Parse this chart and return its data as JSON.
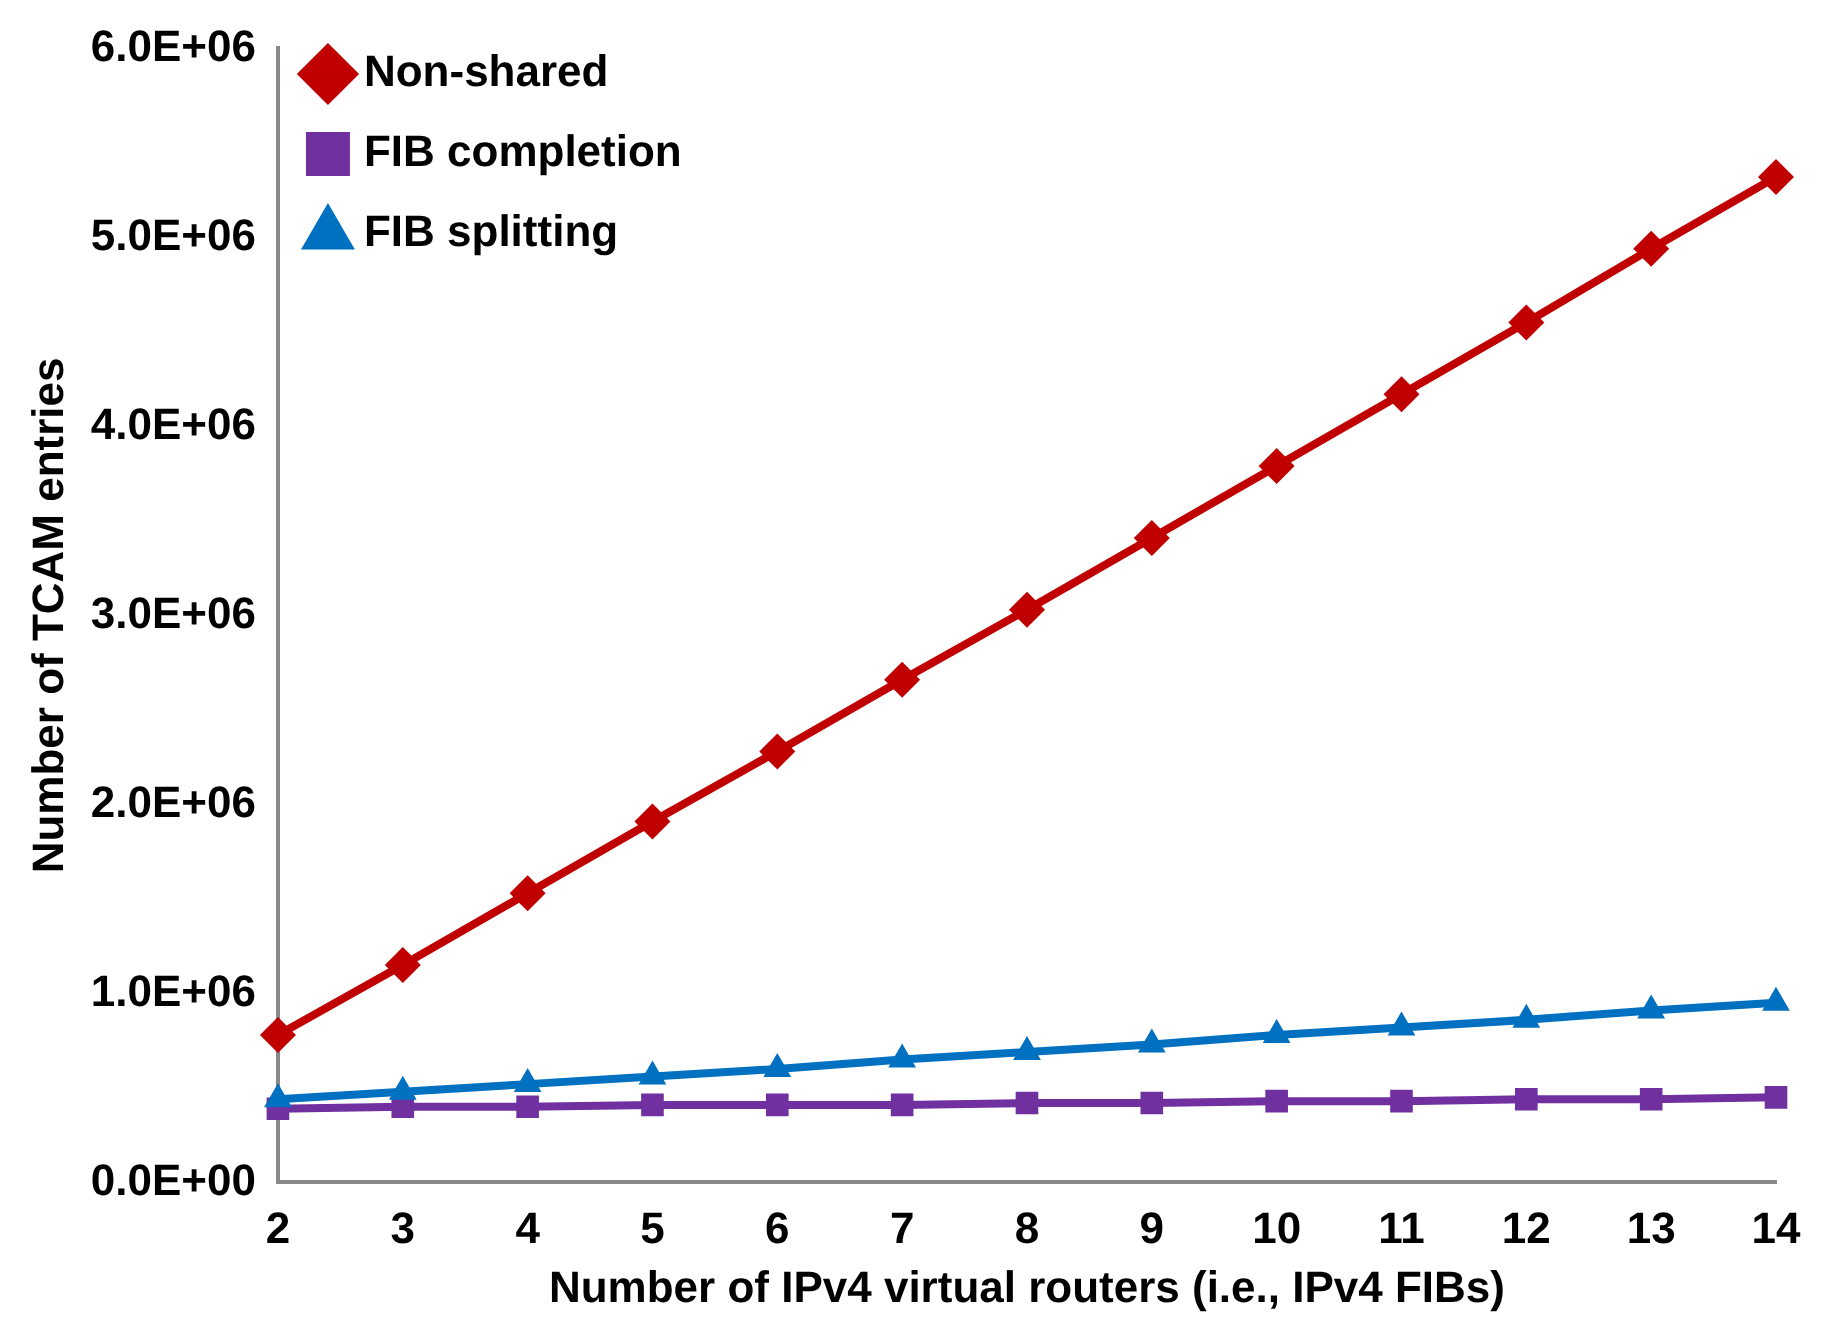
{
  "chart_data": {
    "type": "line",
    "xlabel": "Number of IPv4 virtual routers (i.e., IPv4 FIBs)",
    "ylabel": "Number of TCAM entries",
    "categories": [
      "2",
      "3",
      "4",
      "5",
      "6",
      "7",
      "8",
      "9",
      "10",
      "11",
      "12",
      "13",
      "14"
    ],
    "series": [
      {
        "name": "Non-shared",
        "color": "#c00000",
        "marker": "diamond",
        "values": [
          780000,
          1150000,
          1530000,
          1910000,
          2280000,
          2660000,
          3030000,
          3410000,
          3790000,
          4170000,
          4550000,
          4940000,
          5320000
        ]
      },
      {
        "name": "FIB completion",
        "color": "#7030a0",
        "marker": "square",
        "values": [
          390000,
          400000,
          400000,
          410000,
          410000,
          410000,
          420000,
          420000,
          430000,
          430000,
          440000,
          440000,
          450000
        ]
      },
      {
        "name": "FIB splitting",
        "color": "#0070c0",
        "marker": "triangle",
        "values": [
          440000,
          480000,
          520000,
          560000,
          600000,
          650000,
          690000,
          730000,
          780000,
          820000,
          860000,
          910000,
          950000
        ]
      }
    ],
    "ylim": [
      0,
      6000000
    ],
    "yticks": [
      {
        "value": 0,
        "label": "0.0E+00"
      },
      {
        "value": 1000000,
        "label": "1.0E+06"
      },
      {
        "value": 2000000,
        "label": "2.0E+06"
      },
      {
        "value": 3000000,
        "label": "3.0E+06"
      },
      {
        "value": 4000000,
        "label": "4.0E+06"
      },
      {
        "value": 5000000,
        "label": "5.0E+06"
      },
      {
        "value": 6000000,
        "label": "6.0E+06"
      }
    ],
    "grid": false,
    "legend": "top left",
    "line_style": "solid"
  }
}
